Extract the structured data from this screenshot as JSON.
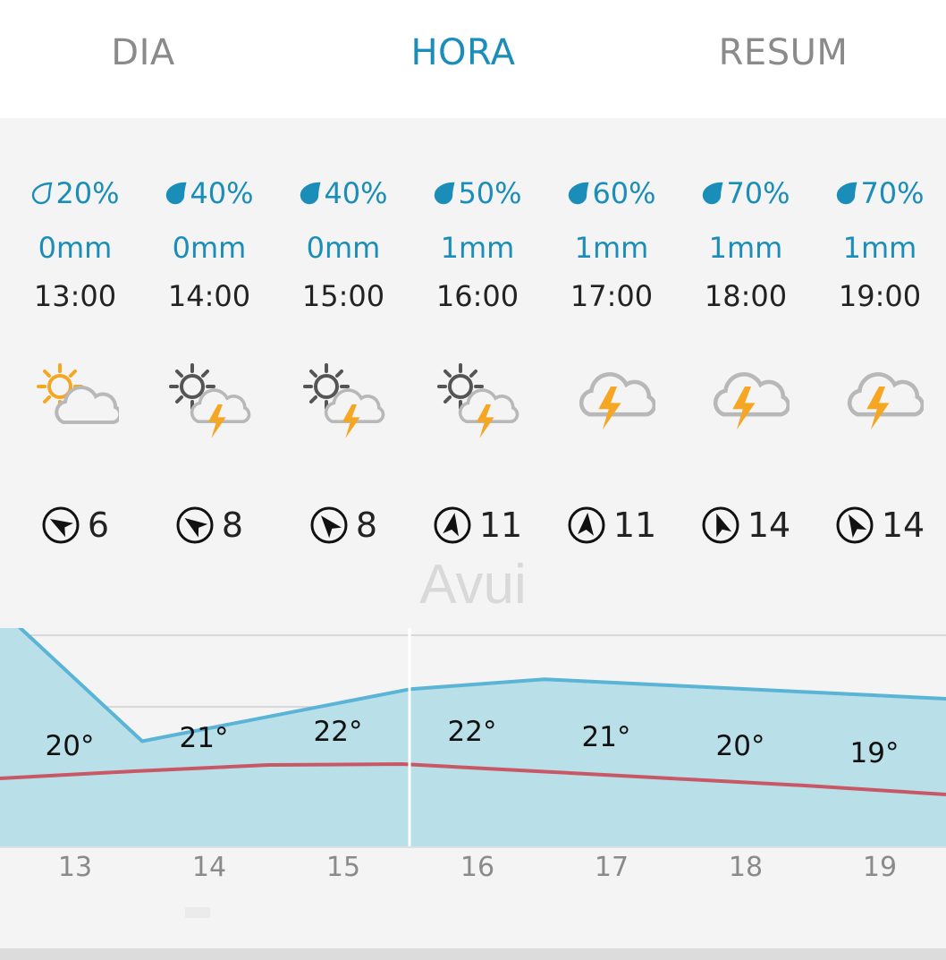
{
  "tabs": [
    {
      "label": "DIA",
      "active": false
    },
    {
      "label": "HORA",
      "active": true
    },
    {
      "label": "RESUM",
      "active": false
    }
  ],
  "colors": {
    "accent": "#1a8db8",
    "temp_area": "#b9dfe9",
    "temp_line": "#5ab4d6",
    "feels_line": "#c95866",
    "sun": "#f5a623",
    "cloud": "#b8b8b8",
    "bolt": "#f5a623"
  },
  "hours": [
    {
      "rain_prob": "20%",
      "drop": "outline",
      "rain_mm": "0mm",
      "time": "13:00",
      "icon": "sun-cloud-icon",
      "wind_speed": "6",
      "wind_rotation": 300,
      "temp_label": "20°",
      "tick": "13"
    },
    {
      "rain_prob": "40%",
      "drop": "filled",
      "rain_mm": "0mm",
      "time": "14:00",
      "icon": "sun-cloud-thunder-icon",
      "wind_speed": "8",
      "wind_rotation": 305,
      "temp_label": "21°",
      "tick": "14"
    },
    {
      "rain_prob": "40%",
      "drop": "filled",
      "rain_mm": "0mm",
      "time": "15:00",
      "icon": "sun-cloud-thunder-icon",
      "wind_speed": "8",
      "wind_rotation": 320,
      "temp_label": "22°",
      "tick": "15"
    },
    {
      "rain_prob": "50%",
      "drop": "filled",
      "rain_mm": "1mm",
      "time": "16:00",
      "icon": "sun-cloud-thunder-icon",
      "wind_speed": "11",
      "wind_rotation": 10,
      "temp_label": "22°",
      "tick": "16"
    },
    {
      "rain_prob": "60%",
      "drop": "filled",
      "rain_mm": "1mm",
      "time": "17:00",
      "icon": "cloud-thunder-icon",
      "wind_speed": "11",
      "wind_rotation": 5,
      "temp_label": "21°",
      "tick": "17"
    },
    {
      "rain_prob": "70%",
      "drop": "filled",
      "rain_mm": "1mm",
      "time": "18:00",
      "icon": "cloud-thunder-icon",
      "wind_speed": "14",
      "wind_rotation": 340,
      "temp_label": "20°",
      "tick": "18"
    },
    {
      "rain_prob": "70%",
      "drop": "filled",
      "rain_mm": "1mm",
      "time": "19:00",
      "icon": "cloud-thunder-icon",
      "wind_speed": "14",
      "wind_rotation": 330,
      "temp_label": "19°",
      "tick": "19"
    }
  ],
  "now_label": "Avui",
  "chart_data": {
    "type": "area",
    "x": [
      "13",
      "14",
      "15",
      "16",
      "17",
      "18",
      "19"
    ],
    "series": [
      {
        "values": [
          20,
          21,
          22,
          22,
          21,
          20,
          19
        ]
      }
    ]
  }
}
